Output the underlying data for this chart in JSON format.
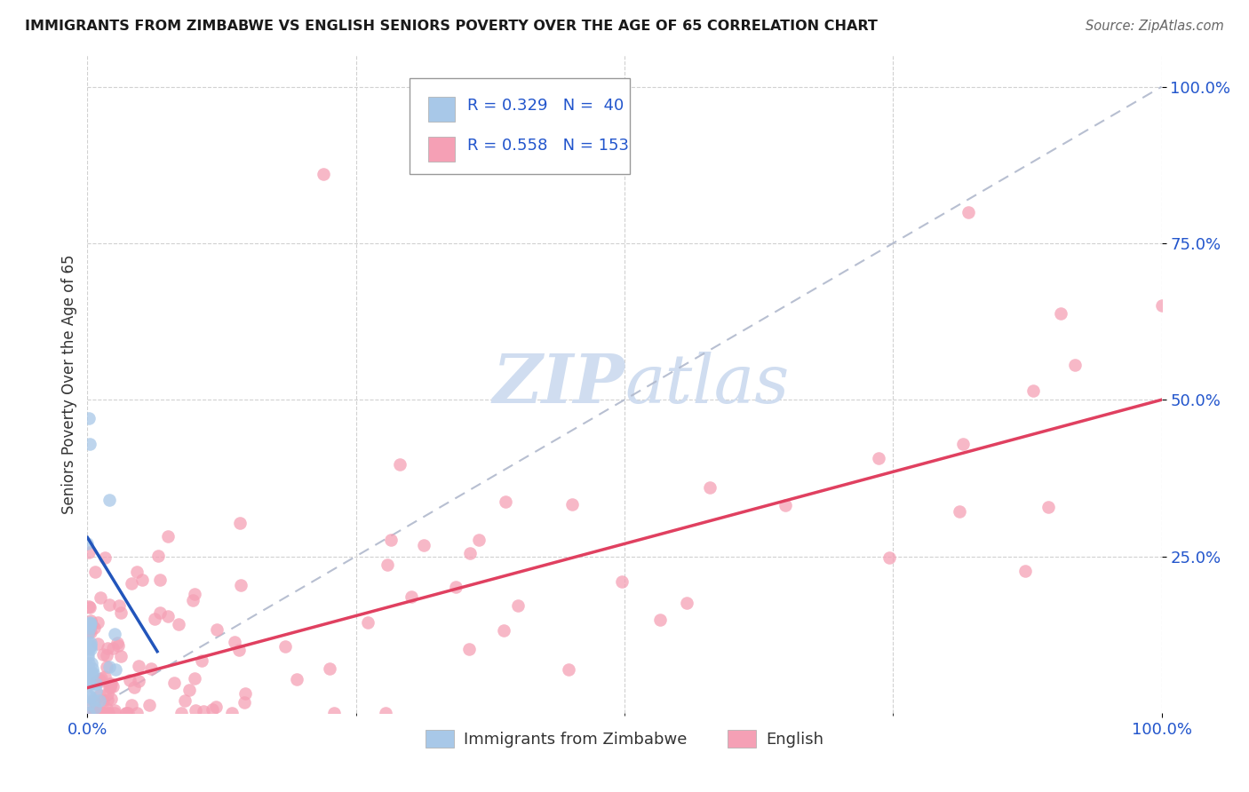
{
  "title": "IMMIGRANTS FROM ZIMBABWE VS ENGLISH SENIORS POVERTY OVER THE AGE OF 65 CORRELATION CHART",
  "source": "Source: ZipAtlas.com",
  "ylabel": "Seniors Poverty Over the Age of 65",
  "r_zimbabwe": 0.329,
  "n_zimbabwe": 40,
  "r_english": 0.558,
  "n_english": 153,
  "color_zimbabwe": "#a8c8e8",
  "color_english": "#f5a0b5",
  "line_color_zimbabwe": "#2255bb",
  "line_color_english": "#e04060",
  "dashed_line_color": "#b0b8cc",
  "background_color": "#ffffff",
  "watermark_color": "#d0ddf0",
  "eng_intercept": 0.04,
  "eng_slope": 0.46,
  "zim_intercept": 0.3,
  "zim_slope": -3.5
}
